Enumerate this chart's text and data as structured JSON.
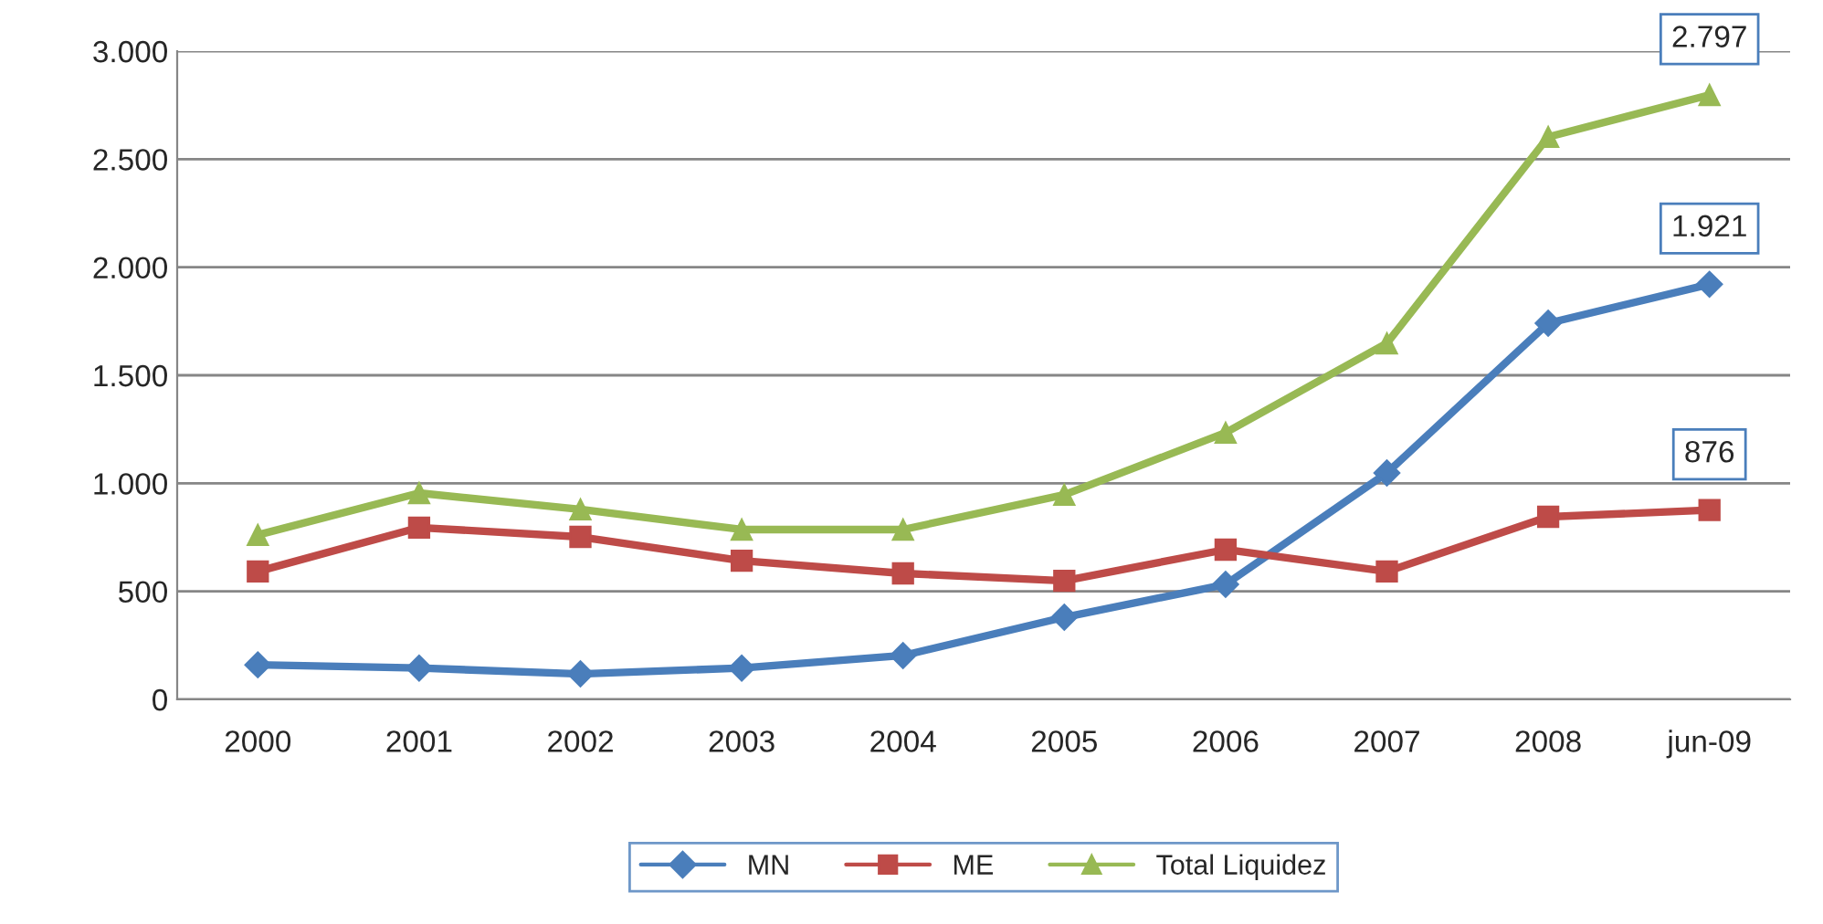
{
  "chart_data": {
    "type": "line",
    "categories": [
      "2000",
      "2001",
      "2002",
      "2003",
      "2004",
      "2005",
      "2006",
      "2007",
      "2008",
      "jun-09"
    ],
    "series": [
      {
        "name": "MN",
        "color": "#4a7ebb",
        "marker": "diamond",
        "values": [
          160,
          145,
          118,
          145,
          203,
          380,
          532,
          1048,
          1741,
          1921
        ],
        "value_labels": [
          null,
          null,
          null,
          null,
          null,
          null,
          null,
          null,
          null,
          "1.921"
        ]
      },
      {
        "name": "ME",
        "color": "#be4b48",
        "marker": "square",
        "values": [
          592,
          795,
          752,
          642,
          583,
          549,
          693,
          592,
          845,
          876
        ],
        "value_labels": [
          null,
          null,
          null,
          null,
          null,
          null,
          null,
          null,
          null,
          "876"
        ]
      },
      {
        "name": "Total Liquidez",
        "color": "#98b954",
        "marker": "triangle",
        "values": [
          761,
          955,
          879,
          786,
          786,
          947,
          1234,
          1648,
          2603,
          2797
        ],
        "value_labels": [
          null,
          null,
          null,
          null,
          null,
          null,
          null,
          null,
          null,
          "2.797"
        ]
      }
    ],
    "ylim": [
      0,
      3000
    ],
    "yticks": [
      {
        "value": 0,
        "label": "0"
      },
      {
        "value": 500,
        "label": "500"
      },
      {
        "value": 1000,
        "label": "1.000"
      },
      {
        "value": 1500,
        "label": "1.500"
      },
      {
        "value": 2000,
        "label": "2.000"
      },
      {
        "value": 2500,
        "label": "2.500"
      },
      {
        "value": 3000,
        "label": "3.000"
      }
    ],
    "grid": "y",
    "legend": "bottom"
  }
}
